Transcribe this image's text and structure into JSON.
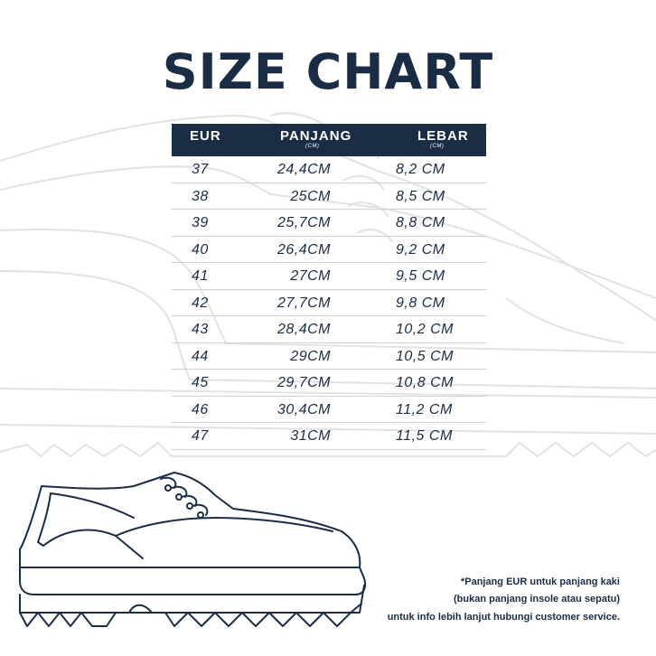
{
  "title": "SIZE CHART",
  "table": {
    "headers": {
      "eur": "EUR",
      "length": "PANJANG",
      "length_unit": "(CM)",
      "width": "LEBAR",
      "width_unit": "(CM)"
    },
    "rows": [
      {
        "eur": "37",
        "length": "24,4CM",
        "width": "8,2 CM"
      },
      {
        "eur": "38",
        "length": "25CM",
        "width": "8,5 CM"
      },
      {
        "eur": "39",
        "length": "25,7CM",
        "width": "8,8 CM"
      },
      {
        "eur": "40",
        "length": "26,4CM",
        "width": "9,2 CM"
      },
      {
        "eur": "41",
        "length": "27CM",
        "width": "9,5 CM"
      },
      {
        "eur": "42",
        "length": "27,7CM",
        "width": "9,8 CM"
      },
      {
        "eur": "43",
        "length": "28,4CM",
        "width": "10,2 CM"
      },
      {
        "eur": "44",
        "length": "29CM",
        "width": "10,5 CM"
      },
      {
        "eur": "45",
        "length": "29,7CM",
        "width": "10,8 CM"
      },
      {
        "eur": "46",
        "length": "30,4CM",
        "width": "11,2 CM"
      },
      {
        "eur": "47",
        "length": "31CM",
        "width": "11,5 CM"
      }
    ]
  },
  "notes": {
    "line1": "*Panjang EUR untuk panjang kaki",
    "line2": "(bukan panjang insole atau sepatu)",
    "line3": "untuk info lebih lanjut hubungi customer service."
  },
  "colors": {
    "navy": "#1b2d45",
    "header_text": "#ffffff",
    "row_divider": "#c8d0d8",
    "outline_light": "#e3e3e3"
  },
  "illustrations": [
    "shoe-background-outline",
    "shoe-foreground-outline"
  ]
}
